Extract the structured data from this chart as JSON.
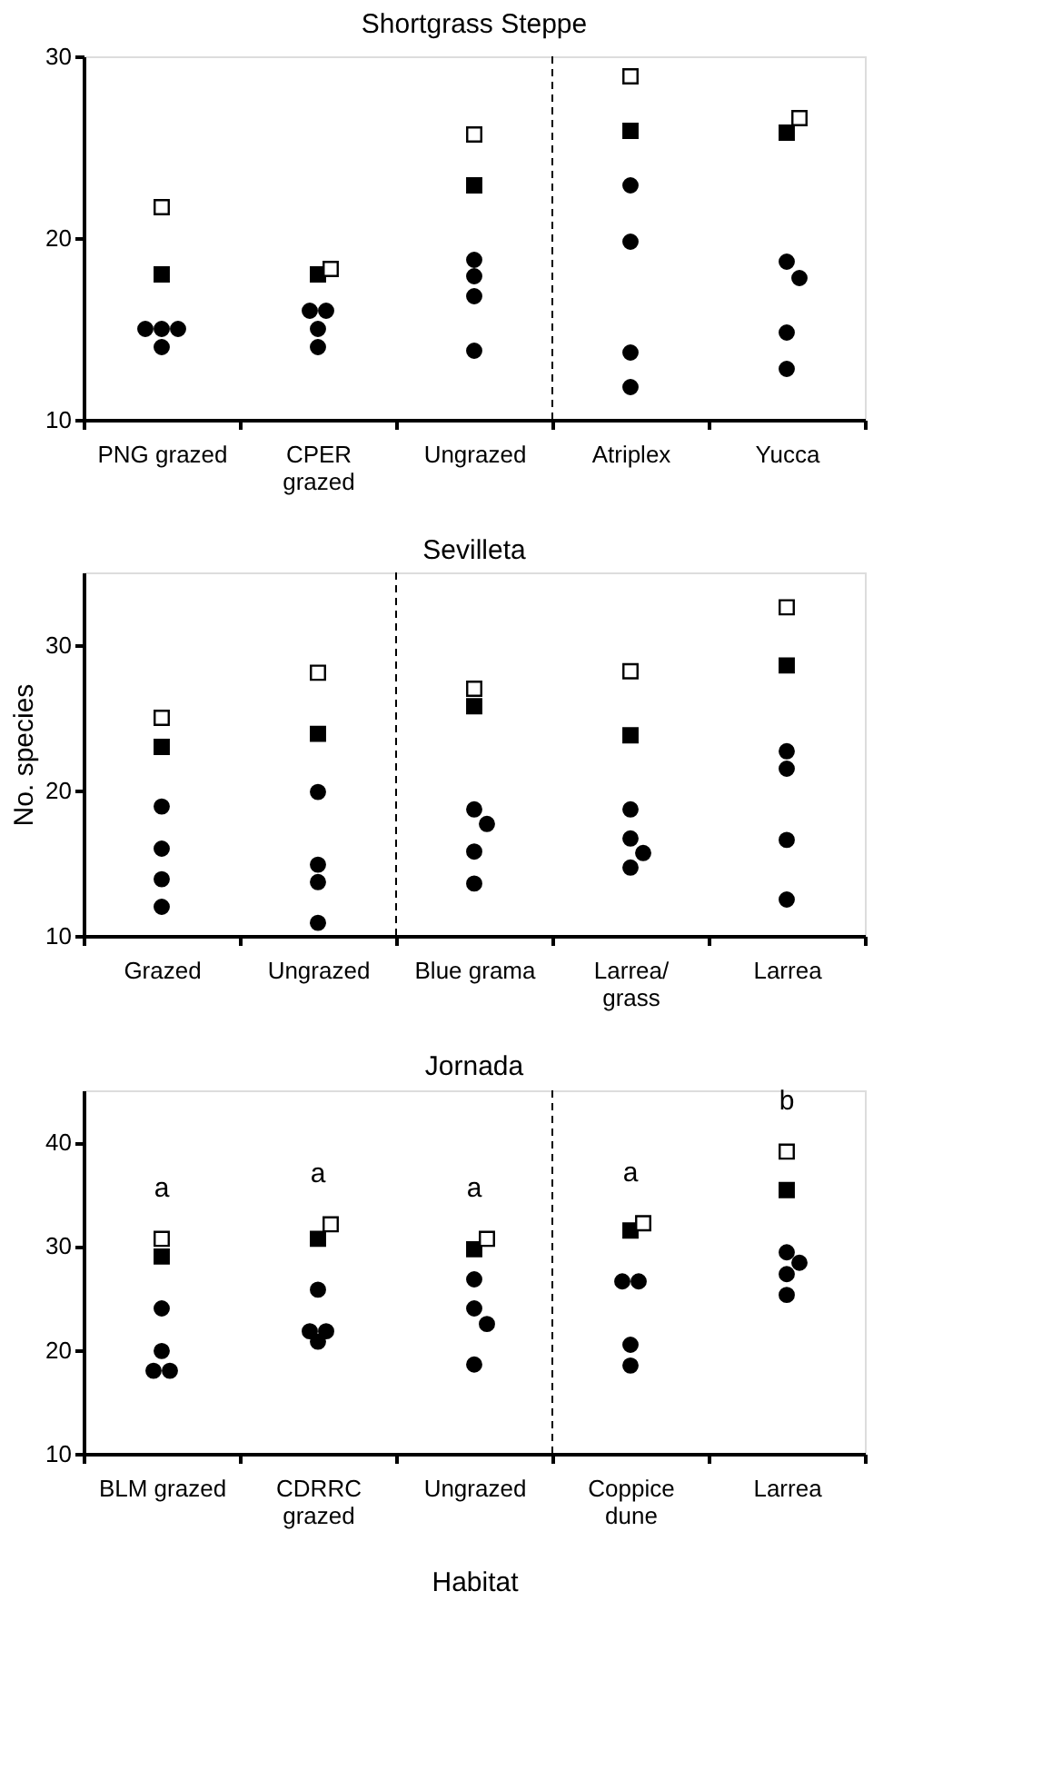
{
  "chart_data": [
    {
      "type": "scatter",
      "title": "Shortgrass Steppe",
      "categories": [
        "PNG grazed",
        "CPER\ngrazed",
        "Ungrazed",
        "Atriplex",
        "Yucca"
      ],
      "ylim": [
        10,
        30
      ],
      "yticks": [
        10,
        20,
        30
      ],
      "grid": false,
      "legend": false,
      "series": [
        {
          "marker": "circle",
          "color": "#000000",
          "values": [
            15,
            16,
            18.8,
            22.9,
            18.7
          ]
        },
        {
          "marker": "circle",
          "color": "#000000",
          "values": [
            15,
            16,
            17.9,
            19.8,
            17.8
          ]
        },
        {
          "marker": "circle",
          "color": "#000000",
          "values": [
            15,
            15,
            16.8,
            13.7,
            14.8
          ]
        },
        {
          "marker": "circle",
          "color": "#000000",
          "values": [
            14,
            14,
            13.8,
            11.8,
            12.8
          ]
        },
        {
          "marker": "square",
          "color": "#000000",
          "values": [
            18,
            18,
            22.9,
            25.9,
            25.8
          ]
        },
        {
          "marker": "square",
          "color": "#ffffff",
          "values": [
            21.7,
            18.3,
            25.7,
            28.9,
            26.6
          ]
        }
      ]
    },
    {
      "type": "scatter",
      "title": "Sevilleta",
      "ylabel": "No. species",
      "categories": [
        "Grazed",
        "Ungrazed",
        "Blue grama",
        "Larrea/\ngrass",
        "Larrea"
      ],
      "ylim": [
        10,
        35
      ],
      "yticks": [
        10,
        20,
        30
      ],
      "grid": false,
      "legend": false,
      "series": [
        {
          "marker": "circle",
          "color": "#000000",
          "values": [
            18.9,
            19.9,
            18.7,
            18.7,
            22.7
          ]
        },
        {
          "marker": "circle",
          "color": "#000000",
          "values": [
            16,
            14.9,
            17.7,
            16.7,
            21.5
          ]
        },
        {
          "marker": "circle",
          "color": "#000000",
          "values": [
            13.9,
            13.7,
            15.8,
            15.7,
            16.6
          ]
        },
        {
          "marker": "circle",
          "color": "#000000",
          "values": [
            12,
            10.9,
            13.6,
            14.7,
            12.5
          ]
        },
        {
          "marker": "square",
          "color": "#000000",
          "values": [
            23,
            23.9,
            25.8,
            23.8,
            28.6
          ]
        },
        {
          "marker": "square",
          "color": "#ffffff",
          "values": [
            25,
            28.1,
            27,
            28.2,
            32.6
          ]
        }
      ]
    },
    {
      "type": "scatter",
      "title": "Jornada",
      "xlabel": "Habitat",
      "categories": [
        "BLM grazed",
        "CDRRC\ngrazed",
        "Ungrazed",
        "Coppice\ndune",
        "Larrea"
      ],
      "ylim": [
        10,
        45
      ],
      "yticks": [
        10,
        20,
        30,
        40
      ],
      "grid": false,
      "legend": false,
      "annotations": [
        "a",
        "a",
        "a",
        "a",
        "b"
      ],
      "series": [
        {
          "marker": "circle",
          "color": "#000000",
          "values": [
            24,
            25.8,
            26.8,
            26.6,
            29.4
          ]
        },
        {
          "marker": "circle",
          "color": "#000000",
          "values": [
            19.9,
            21.8,
            24,
            26.6,
            28.4
          ]
        },
        {
          "marker": "circle",
          "color": "#000000",
          "values": [
            18,
            21.8,
            22.5,
            20.5,
            27.3
          ]
        },
        {
          "marker": "circle",
          "color": "#000000",
          "values": [
            18,
            20.8,
            18.6,
            18.5,
            25.3
          ]
        },
        {
          "marker": "square",
          "color": "#000000",
          "values": [
            29,
            30.7,
            29.7,
            31.5,
            35.4
          ]
        },
        {
          "marker": "square",
          "color": "#ffffff",
          "values": [
            30.7,
            32.1,
            30.7,
            32.2,
            39.1
          ]
        }
      ]
    }
  ]
}
